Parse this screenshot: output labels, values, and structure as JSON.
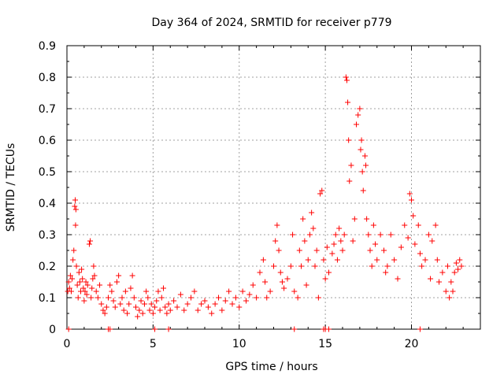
{
  "chart_data": {
    "type": "scatter",
    "title": "Day 364 of 2024, SRMTID for receiver p779",
    "xlabel": "GPS time / hours",
    "ylabel": "SRMTID / TECUs",
    "xlim": [
      0,
      24
    ],
    "ylim": [
      0,
      0.9
    ],
    "xticks": [
      0,
      5,
      10,
      15,
      20
    ],
    "yticks": [
      0,
      0.1,
      0.2,
      0.3,
      0.4,
      0.5,
      0.6,
      0.7,
      0.8,
      0.9
    ],
    "ytick_labels": [
      "0",
      "0.1",
      "0.2",
      "0.3",
      "0.4",
      "0.5",
      "0.6",
      "0.7",
      "0.8",
      "0.9"
    ],
    "grid": true,
    "marker": "+",
    "color": "#ff0000",
    "series": [
      {
        "name": "SRMTID",
        "points": [
          [
            0.05,
            0.12
          ],
          [
            0.1,
            0.15
          ],
          [
            0.15,
            0.13
          ],
          [
            0.2,
            0.17
          ],
          [
            0.25,
            0.12
          ],
          [
            0.3,
            0.16
          ],
          [
            0.35,
            0.22
          ],
          [
            0.4,
            0.25
          ],
          [
            0.45,
            0.39
          ],
          [
            0.48,
            0.41
          ],
          [
            0.5,
            0.33
          ],
          [
            0.52,
            0.38
          ],
          [
            0.55,
            0.2
          ],
          [
            0.6,
            0.14
          ],
          [
            0.65,
            0.1
          ],
          [
            0.7,
            0.18
          ],
          [
            0.75,
            0.15
          ],
          [
            0.8,
            0.12
          ],
          [
            0.85,
            0.19
          ],
          [
            0.9,
            0.16
          ],
          [
            0.95,
            0.13
          ],
          [
            1.0,
            0.09
          ],
          [
            1.05,
            0.12
          ],
          [
            1.1,
            0.15
          ],
          [
            1.15,
            0.11
          ],
          [
            1.2,
            0.14
          ],
          [
            1.3,
            0.27
          ],
          [
            1.35,
            0.28
          ],
          [
            1.4,
            0.1
          ],
          [
            1.45,
            0.13
          ],
          [
            1.5,
            0.16
          ],
          [
            1.55,
            0.2
          ],
          [
            1.6,
            0.17
          ],
          [
            1.7,
            0.12
          ],
          [
            1.8,
            0.1
          ],
          [
            1.9,
            0.14
          ],
          [
            2.0,
            0.08
          ],
          [
            2.1,
            0.06
          ],
          [
            2.2,
            0.05
          ],
          [
            2.3,
            0.07
          ],
          [
            2.4,
            0.1
          ],
          [
            2.5,
            0.14
          ],
          [
            2.6,
            0.12
          ],
          [
            2.7,
            0.09
          ],
          [
            2.8,
            0.07
          ],
          [
            2.9,
            0.15
          ],
          [
            3.0,
            0.17
          ],
          [
            3.1,
            0.08
          ],
          [
            3.2,
            0.1
          ],
          [
            3.3,
            0.06
          ],
          [
            3.4,
            0.12
          ],
          [
            3.5,
            0.05
          ],
          [
            3.6,
            0.08
          ],
          [
            3.7,
            0.13
          ],
          [
            3.8,
            0.17
          ],
          [
            3.9,
            0.1
          ],
          [
            4.0,
            0.07
          ],
          [
            4.1,
            0.04
          ],
          [
            4.2,
            0.06
          ],
          [
            4.3,
            0.09
          ],
          [
            4.4,
            0.05
          ],
          [
            4.5,
            0.08
          ],
          [
            4.6,
            0.12
          ],
          [
            4.7,
            0.1
          ],
          [
            4.8,
            0.06
          ],
          [
            4.9,
            0.08
          ],
          [
            5.0,
            0.05
          ],
          [
            5.1,
            0.07
          ],
          [
            5.2,
            0.09
          ],
          [
            5.3,
            0.12
          ],
          [
            5.4,
            0.06
          ],
          [
            5.5,
            0.1
          ],
          [
            5.6,
            0.13
          ],
          [
            5.7,
            0.07
          ],
          [
            5.8,
            0.05
          ],
          [
            5.9,
            0.08
          ],
          [
            6.0,
            0.06
          ],
          [
            6.2,
            0.09
          ],
          [
            6.4,
            0.07
          ],
          [
            6.6,
            0.11
          ],
          [
            6.8,
            0.06
          ],
          [
            7.0,
            0.08
          ],
          [
            7.2,
            0.1
          ],
          [
            7.4,
            0.12
          ],
          [
            7.6,
            0.06
          ],
          [
            7.8,
            0.08
          ],
          [
            8.0,
            0.09
          ],
          [
            8.2,
            0.07
          ],
          [
            8.4,
            0.05
          ],
          [
            8.6,
            0.08
          ],
          [
            8.8,
            0.1
          ],
          [
            9.0,
            0.06
          ],
          [
            9.2,
            0.09
          ],
          [
            9.4,
            0.12
          ],
          [
            9.6,
            0.08
          ],
          [
            9.8,
            0.1
          ],
          [
            10.0,
            0.07
          ],
          [
            10.2,
            0.12
          ],
          [
            10.4,
            0.09
          ],
          [
            10.6,
            0.11
          ],
          [
            10.8,
            0.14
          ],
          [
            11.0,
            0.1
          ],
          [
            11.2,
            0.18
          ],
          [
            11.4,
            0.22
          ],
          [
            11.5,
            0.15
          ],
          [
            11.6,
            0.1
          ],
          [
            11.8,
            0.12
          ],
          [
            12.0,
            0.2
          ],
          [
            12.1,
            0.28
          ],
          [
            12.2,
            0.33
          ],
          [
            12.3,
            0.25
          ],
          [
            12.4,
            0.18
          ],
          [
            12.5,
            0.15
          ],
          [
            12.6,
            0.13
          ],
          [
            12.8,
            0.16
          ],
          [
            13.0,
            0.2
          ],
          [
            13.1,
            0.3
          ],
          [
            13.2,
            0.12
          ],
          [
            13.4,
            0.1
          ],
          [
            13.5,
            0.25
          ],
          [
            13.6,
            0.2
          ],
          [
            13.7,
            0.35
          ],
          [
            13.8,
            0.28
          ],
          [
            13.9,
            0.14
          ],
          [
            14.0,
            0.22
          ],
          [
            14.1,
            0.3
          ],
          [
            14.2,
            0.37
          ],
          [
            14.3,
            0.32
          ],
          [
            14.4,
            0.2
          ],
          [
            14.5,
            0.25
          ],
          [
            14.6,
            0.1
          ],
          [
            14.7,
            0.43
          ],
          [
            14.8,
            0.44
          ],
          [
            14.9,
            0.22
          ],
          [
            15.0,
            0.16
          ],
          [
            15.1,
            0.26
          ],
          [
            15.2,
            0.18
          ],
          [
            15.4,
            0.24
          ],
          [
            15.5,
            0.27
          ],
          [
            15.6,
            0.3
          ],
          [
            15.7,
            0.22
          ],
          [
            15.8,
            0.32
          ],
          [
            15.9,
            0.28
          ],
          [
            16.0,
            0.25
          ],
          [
            16.1,
            0.3
          ],
          [
            16.2,
            0.8
          ],
          [
            16.25,
            0.79
          ],
          [
            16.3,
            0.72
          ],
          [
            16.35,
            0.6
          ],
          [
            16.4,
            0.47
          ],
          [
            16.5,
            0.52
          ],
          [
            16.6,
            0.28
          ],
          [
            16.7,
            0.35
          ],
          [
            16.8,
            0.65
          ],
          [
            16.9,
            0.68
          ],
          [
            17.0,
            0.7
          ],
          [
            17.05,
            0.57
          ],
          [
            17.1,
            0.6
          ],
          [
            17.15,
            0.5
          ],
          [
            17.2,
            0.44
          ],
          [
            17.3,
            0.55
          ],
          [
            17.35,
            0.52
          ],
          [
            17.4,
            0.35
          ],
          [
            17.5,
            0.3
          ],
          [
            17.6,
            0.25
          ],
          [
            17.7,
            0.2
          ],
          [
            17.8,
            0.33
          ],
          [
            17.9,
            0.27
          ],
          [
            18.0,
            0.22
          ],
          [
            18.2,
            0.3
          ],
          [
            18.4,
            0.25
          ],
          [
            18.5,
            0.18
          ],
          [
            18.6,
            0.2
          ],
          [
            18.8,
            0.3
          ],
          [
            19.0,
            0.22
          ],
          [
            19.2,
            0.16
          ],
          [
            19.4,
            0.26
          ],
          [
            19.6,
            0.33
          ],
          [
            19.8,
            0.29
          ],
          [
            19.9,
            0.43
          ],
          [
            20.0,
            0.41
          ],
          [
            20.1,
            0.36
          ],
          [
            20.2,
            0.27
          ],
          [
            20.4,
            0.33
          ],
          [
            20.5,
            0.24
          ],
          [
            20.6,
            0.2
          ],
          [
            20.8,
            0.22
          ],
          [
            21.0,
            0.3
          ],
          [
            21.1,
            0.16
          ],
          [
            21.2,
            0.28
          ],
          [
            21.4,
            0.33
          ],
          [
            21.5,
            0.22
          ],
          [
            21.6,
            0.15
          ],
          [
            21.8,
            0.18
          ],
          [
            22.0,
            0.12
          ],
          [
            22.1,
            0.2
          ],
          [
            22.2,
            0.1
          ],
          [
            22.3,
            0.15
          ],
          [
            22.4,
            0.12
          ],
          [
            22.5,
            0.18
          ],
          [
            22.6,
            0.21
          ],
          [
            22.7,
            0.19
          ],
          [
            22.8,
            0.22
          ],
          [
            22.9,
            0.2
          ]
        ]
      },
      {
        "name": "zero-level markers",
        "points": [
          [
            0.1,
            0
          ],
          [
            2.4,
            0
          ],
          [
            2.5,
            0
          ],
          [
            5.1,
            0
          ],
          [
            5.9,
            0
          ],
          [
            13.2,
            0
          ],
          [
            14.9,
            0
          ],
          [
            15.0,
            0
          ],
          [
            15.2,
            0
          ],
          [
            20.5,
            0
          ]
        ]
      }
    ]
  }
}
